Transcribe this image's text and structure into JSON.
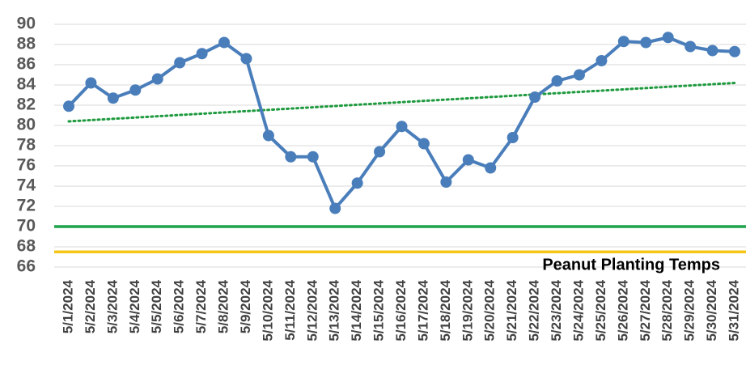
{
  "chart_data": {
    "type": "line",
    "categories": [
      "5/1/2024",
      "5/2/2024",
      "5/3/2024",
      "5/4/2024",
      "5/5/2024",
      "5/6/2024",
      "5/7/2024",
      "5/8/2024",
      "5/9/2024",
      "5/10/2024",
      "5/11/2024",
      "5/12/2024",
      "5/13/2024",
      "5/14/2024",
      "5/15/2024",
      "5/16/2024",
      "5/17/2024",
      "5/18/2024",
      "5/19/2024",
      "5/20/2024",
      "5/21/2024",
      "5/22/2024",
      "5/23/2024",
      "5/24/2024",
      "5/25/2024",
      "5/26/2024",
      "5/27/2024",
      "5/28/2024",
      "5/29/2024",
      "5/30/2024",
      "5/31/2024"
    ],
    "series": [
      {
        "color": "#4a7ebb",
        "values": [
          81.9,
          84.2,
          82.7,
          83.5,
          84.6,
          86.2,
          87.1,
          88.2,
          86.6,
          79.0,
          76.9,
          76.9,
          71.8,
          74.3,
          77.4,
          79.9,
          78.2,
          74.4,
          76.6,
          75.8,
          78.8,
          82.8,
          84.4,
          85.0,
          86.4,
          88.3,
          88.2,
          88.7,
          87.8,
          87.4,
          87.3
        ]
      }
    ],
    "trendline": {
      "start": 80.4,
      "end": 84.2,
      "color": "#1f9a3f"
    },
    "reference_lines": [
      {
        "value": 70,
        "color": "#1ea34a"
      },
      {
        "value": 67.5,
        "color": "#f5c518"
      }
    ],
    "annotation": "Peanut Planting Temps",
    "ylim": [
      66,
      90
    ],
    "yticks": [
      66,
      68,
      70,
      72,
      74,
      76,
      78,
      80,
      82,
      84,
      86,
      88,
      90
    ],
    "grid": true
  }
}
